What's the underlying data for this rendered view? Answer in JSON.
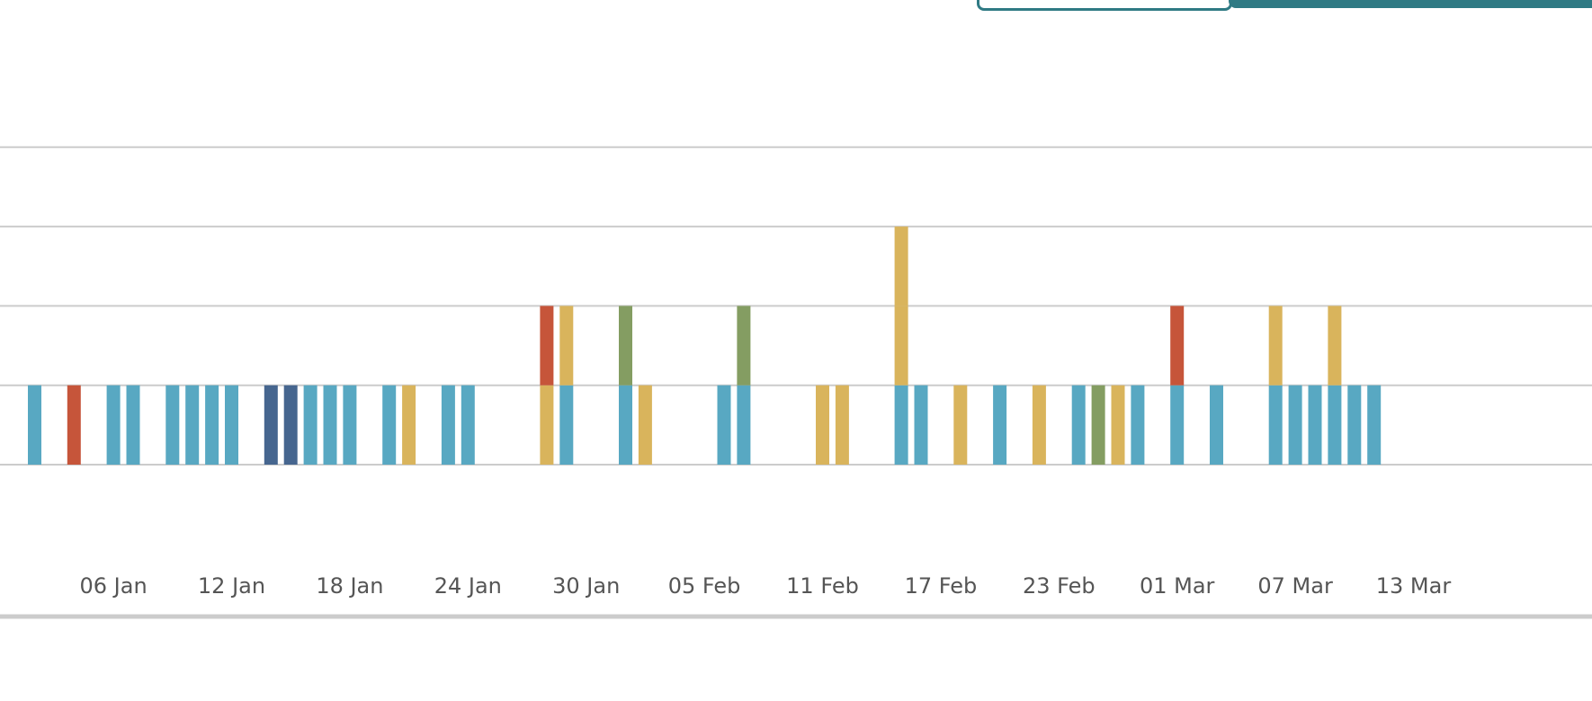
{
  "controls": {
    "outline_button_label": "",
    "filled_button_label": ""
  },
  "chart_data": {
    "type": "bar",
    "stacked": true,
    "title": "",
    "xlabel": "",
    "ylabel": "",
    "start_date": "2025-01-02",
    "ylim": [
      -1,
      5
    ],
    "y_gridlines": [
      0,
      1,
      2,
      3,
      4
    ],
    "grid": true,
    "x_tick_labels": [
      "06 Jan",
      "12 Jan",
      "18 Jan",
      "24 Jan",
      "30 Jan",
      "05 Feb",
      "11 Feb",
      "17 Feb",
      "23 Feb",
      "01 Mar",
      "07 Mar",
      "13 Mar"
    ],
    "colors": {
      "teal": "#58a8c2",
      "red": "#c6553a",
      "gold": "#d9b45c",
      "green": "#849d62",
      "navy": "#46668f"
    },
    "bars": [
      {
        "day": 1,
        "segments": [
          "teal"
        ]
      },
      {
        "day": 3,
        "segments": [
          "red"
        ]
      },
      {
        "day": 5,
        "segments": [
          "teal"
        ]
      },
      {
        "day": 6,
        "segments": [
          "teal"
        ]
      },
      {
        "day": 8,
        "segments": [
          "teal"
        ]
      },
      {
        "day": 9,
        "segments": [
          "teal"
        ]
      },
      {
        "day": 10,
        "segments": [
          "teal"
        ]
      },
      {
        "day": 11,
        "segments": [
          "teal"
        ]
      },
      {
        "day": 13,
        "segments": [
          "navy"
        ]
      },
      {
        "day": 14,
        "segments": [
          "navy"
        ]
      },
      {
        "day": 15,
        "segments": [
          "teal"
        ]
      },
      {
        "day": 16,
        "segments": [
          "teal"
        ]
      },
      {
        "day": 17,
        "segments": [
          "teal"
        ]
      },
      {
        "day": 19,
        "segments": [
          "teal"
        ]
      },
      {
        "day": 20,
        "segments": [
          "gold"
        ]
      },
      {
        "day": 22,
        "segments": [
          "teal"
        ]
      },
      {
        "day": 23,
        "segments": [
          "teal"
        ]
      },
      {
        "day": 27,
        "segments": [
          "gold",
          "red"
        ]
      },
      {
        "day": 28,
        "segments": [
          "teal",
          "gold"
        ]
      },
      {
        "day": 31,
        "segments": [
          "teal",
          "green"
        ]
      },
      {
        "day": 32,
        "segments": [
          "gold"
        ]
      },
      {
        "day": 36,
        "segments": [
          "teal"
        ]
      },
      {
        "day": 37,
        "segments": [
          "teal",
          "green"
        ]
      },
      {
        "day": 41,
        "segments": [
          "gold"
        ]
      },
      {
        "day": 42,
        "segments": [
          "gold"
        ]
      },
      {
        "day": 45,
        "segments": [
          "teal",
          "gold",
          "gold"
        ]
      },
      {
        "day": 46,
        "segments": [
          "teal"
        ]
      },
      {
        "day": 48,
        "segments": [
          "gold"
        ]
      },
      {
        "day": 50,
        "segments": [
          "teal"
        ]
      },
      {
        "day": 52,
        "segments": [
          "gold"
        ]
      },
      {
        "day": 54,
        "segments": [
          "teal"
        ]
      },
      {
        "day": 55,
        "segments": [
          "green"
        ]
      },
      {
        "day": 56,
        "segments": [
          "gold"
        ]
      },
      {
        "day": 57,
        "segments": [
          "teal"
        ]
      },
      {
        "day": 59,
        "segments": [
          "teal",
          "red"
        ]
      },
      {
        "day": 61,
        "segments": [
          "teal"
        ]
      },
      {
        "day": 64,
        "segments": [
          "teal",
          "gold"
        ]
      },
      {
        "day": 65,
        "segments": [
          "teal"
        ]
      },
      {
        "day": 66,
        "segments": [
          "teal"
        ]
      },
      {
        "day": 67,
        "segments": [
          "teal",
          "gold"
        ]
      },
      {
        "day": 68,
        "segments": [
          "teal"
        ]
      },
      {
        "day": 69,
        "segments": [
          "teal"
        ]
      }
    ]
  }
}
